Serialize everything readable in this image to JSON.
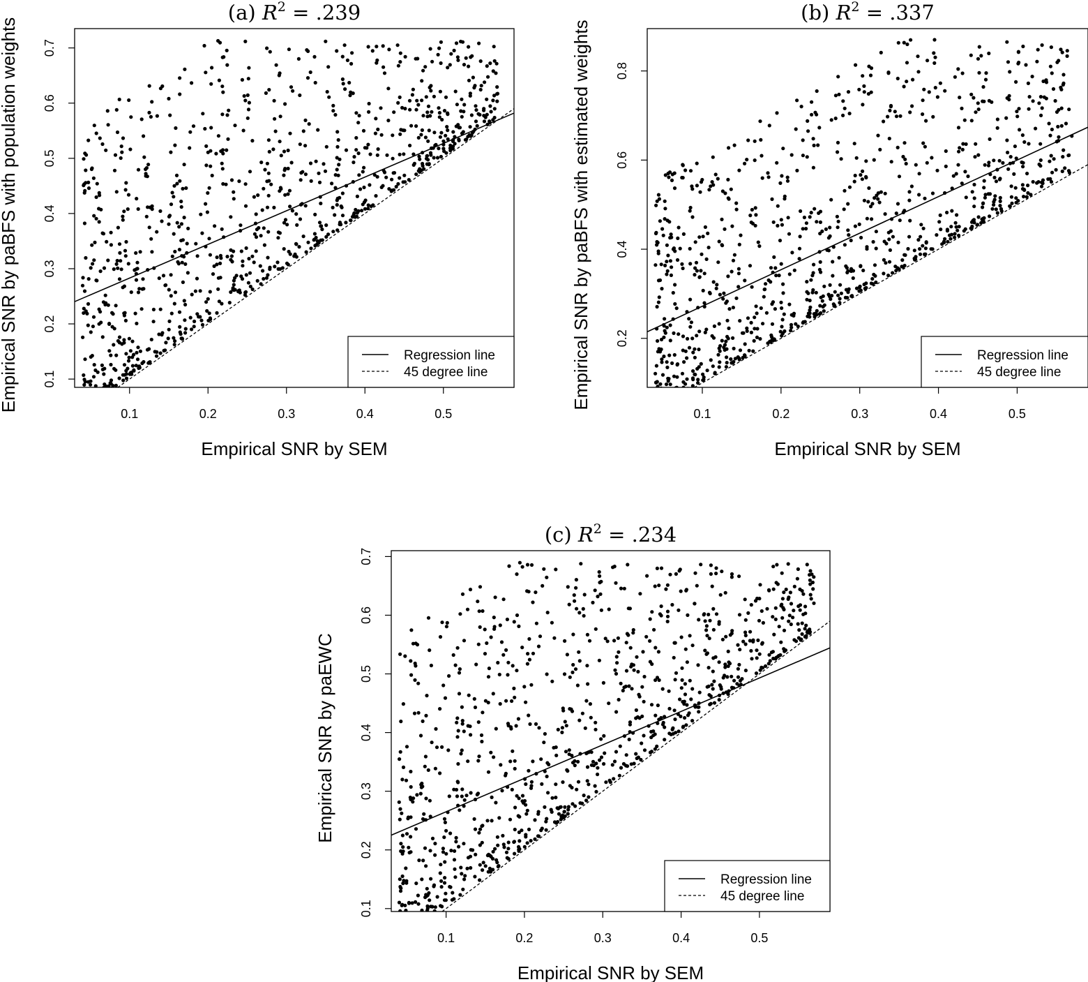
{
  "chart_data": [
    {
      "type": "scatter",
      "title_prefix": "(a)",
      "title_stat": "R",
      "title_sup": "2",
      "title_value": "= .239",
      "xlabel": "Empirical SNR by SEM",
      "ylabel": "Empirical SNR by paBFS with population weights",
      "xlim": [
        0.03,
        0.59
      ],
      "ylim": [
        0.085,
        0.735
      ],
      "xticks": [
        "0.1",
        "0.2",
        "0.3",
        "0.4",
        "0.5"
      ],
      "yticks": [
        "0.1",
        "0.2",
        "0.3",
        "0.4",
        "0.5",
        "0.6",
        "0.7"
      ],
      "regression": {
        "intercept": 0.222,
        "slope": 0.61
      },
      "legend": {
        "position": "bottom-right",
        "entries": [
          "Regression line",
          "45 degree line"
        ]
      },
      "seed": 11,
      "points": {
        "n": 1000,
        "x_range": [
          0.04,
          0.57
        ]
      }
    },
    {
      "type": "scatter",
      "title_prefix": "(b)",
      "title_stat": "R",
      "title_sup": "2",
      "title_value": "= .337",
      "xlabel": "Empirical SNR by SEM",
      "ylabel": "Empirical SNR by paBFS with estimated weights",
      "xlim": [
        0.03,
        0.59
      ],
      "ylim": [
        0.09,
        0.895
      ],
      "xticks": [
        "0.1",
        "0.2",
        "0.3",
        "0.4",
        "0.5"
      ],
      "yticks": [
        "0.2",
        "0.4",
        "0.6",
        "0.8"
      ],
      "regression": {
        "intercept": 0.19,
        "slope": 0.82
      },
      "legend": {
        "position": "bottom-right",
        "entries": [
          "Regression line",
          "45 degree line"
        ]
      },
      "seed": 23,
      "points": {
        "n": 1000,
        "x_range": [
          0.04,
          0.57
        ]
      }
    },
    {
      "type": "scatter",
      "title_prefix": "(c)",
      "title_stat": "R",
      "title_sup": "2",
      "title_value": "= .234",
      "xlabel": "Empirical SNR by SEM",
      "ylabel": "Empirical SNR by paEWC",
      "xlim": [
        0.03,
        0.59
      ],
      "ylim": [
        0.095,
        0.71
      ],
      "xticks": [
        "0.1",
        "0.2",
        "0.3",
        "0.4",
        "0.5"
      ],
      "yticks": [
        "0.1",
        "0.2",
        "0.3",
        "0.4",
        "0.5",
        "0.6",
        "0.7"
      ],
      "regression": {
        "intercept": 0.208,
        "slope": 0.57
      },
      "legend": {
        "position": "bottom-right",
        "entries": [
          "Regression line",
          "45 degree line"
        ]
      },
      "seed": 37,
      "points": {
        "n": 1000,
        "x_range": [
          0.04,
          0.57
        ]
      }
    }
  ]
}
